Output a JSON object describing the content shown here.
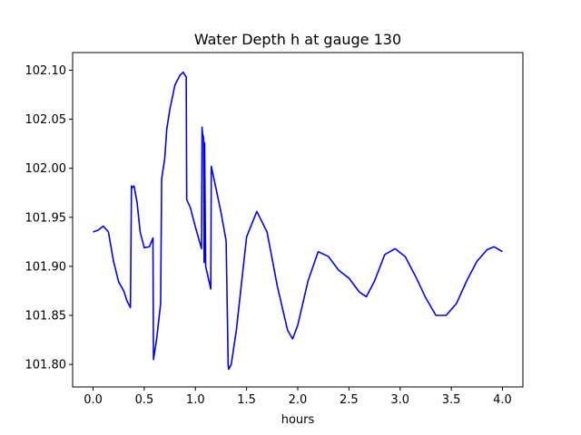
{
  "chart_data": {
    "type": "line",
    "title": "Water Depth h at gauge 130",
    "xlabel": "hours",
    "ylabel": "",
    "xlim": [
      -0.2,
      4.2
    ],
    "ylim": [
      101.777,
      102.118
    ],
    "xticks": [
      0.0,
      0.5,
      1.0,
      1.5,
      2.0,
      2.5,
      3.0,
      3.5,
      4.0
    ],
    "xtick_labels": [
      "0.0",
      "0.5",
      "1.0",
      "1.5",
      "2.0",
      "2.5",
      "3.0",
      "3.5",
      "4.0"
    ],
    "yticks": [
      101.8,
      101.85,
      101.9,
      101.95,
      102.0,
      102.05,
      102.1
    ],
    "ytick_labels": [
      "101.80",
      "101.85",
      "101.90",
      "101.95",
      "102.00",
      "102.05",
      "102.10"
    ],
    "grid": false,
    "legend": "none",
    "series": [
      {
        "color": "#0000ff",
        "x": [
          0.0,
          0.05,
          0.1,
          0.15,
          0.2,
          0.25,
          0.3,
          0.33,
          0.365,
          0.375,
          0.38,
          0.4,
          0.43,
          0.46,
          0.5,
          0.55,
          0.585,
          0.59,
          0.62,
          0.66,
          0.67,
          0.7,
          0.72,
          0.75,
          0.8,
          0.85,
          0.88,
          0.91,
          0.915,
          0.95,
          1.0,
          1.06,
          1.065,
          1.07,
          1.08,
          1.085,
          1.09,
          1.1,
          1.15,
          1.155,
          1.2,
          1.25,
          1.3,
          1.32,
          1.325,
          1.35,
          1.4,
          1.5,
          1.6,
          1.7,
          1.8,
          1.9,
          1.95,
          2.0,
          2.1,
          2.2,
          2.3,
          2.4,
          2.5,
          2.6,
          2.67,
          2.75,
          2.85,
          2.95,
          3.05,
          3.15,
          3.25,
          3.35,
          3.45,
          3.55,
          3.65,
          3.75,
          3.85,
          3.92,
          4.0
        ],
        "y": [
          101.935,
          101.937,
          101.941,
          101.935,
          101.905,
          101.884,
          101.875,
          101.865,
          101.858,
          101.982,
          101.98,
          101.982,
          101.965,
          101.935,
          101.919,
          101.92,
          101.929,
          101.805,
          101.825,
          101.862,
          101.989,
          102.01,
          102.04,
          102.06,
          102.085,
          102.095,
          102.098,
          102.093,
          101.968,
          101.96,
          101.94,
          101.918,
          102.042,
          102.035,
          102.031,
          101.904,
          102.026,
          101.9,
          101.877,
          102.002,
          101.98,
          101.955,
          101.926,
          101.8,
          101.795,
          101.8,
          101.835,
          101.93,
          101.956,
          101.935,
          101.88,
          101.835,
          101.826,
          101.84,
          101.885,
          101.915,
          101.91,
          101.896,
          101.888,
          101.874,
          101.869,
          101.885,
          101.912,
          101.918,
          101.91,
          101.89,
          101.868,
          101.85,
          101.85,
          101.862,
          101.885,
          101.905,
          101.917,
          101.92,
          101.915
        ]
      }
    ]
  }
}
